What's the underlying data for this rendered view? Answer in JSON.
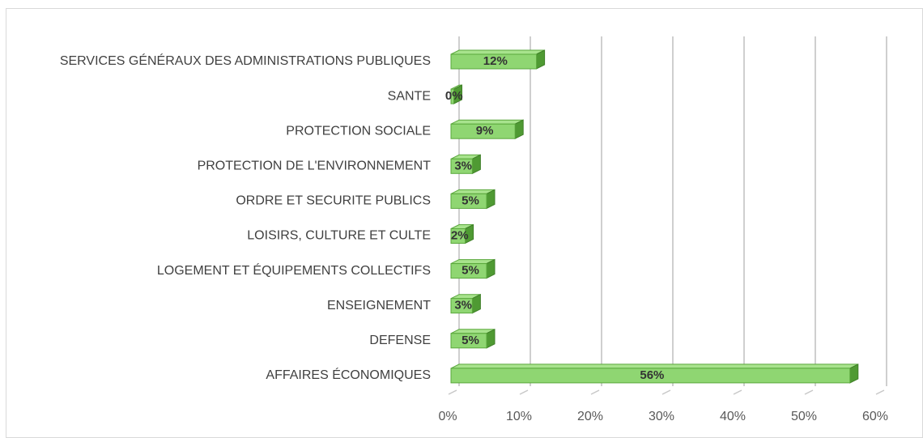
{
  "chart_data": {
    "type": "bar",
    "orientation": "horizontal",
    "categories": [
      "SERVICES GÉNÉRAUX DES ADMINISTRATIONS PUBLIQUES",
      "SANTE",
      "PROTECTION SOCIALE",
      "PROTECTION DE L'ENVIRONNEMENT",
      "ORDRE ET SECURITE PUBLICS",
      "LOISIRS, CULTURE ET CULTE",
      "LOGEMENT ET ÉQUIPEMENTS COLLECTIFS",
      "ENSEIGNEMENT",
      "DEFENSE",
      "AFFAIRES ÉCONOMIQUES"
    ],
    "values": [
      12,
      0.4,
      9,
      3,
      5,
      2,
      5,
      3,
      5,
      56
    ],
    "value_labels": [
      "12%",
      "0%",
      "9%",
      "3%",
      "5%",
      "2%",
      "5%",
      "3%",
      "5%",
      "56%"
    ],
    "color": "#8fd672",
    "xlim": [
      0,
      60
    ],
    "xticks": [
      {
        "value": 0,
        "label": "0%"
      },
      {
        "value": 10,
        "label": "10%"
      },
      {
        "value": 20,
        "label": "20%"
      },
      {
        "value": 30,
        "label": "30%"
      },
      {
        "value": 40,
        "label": "40%"
      },
      {
        "value": 50,
        "label": "50%"
      },
      {
        "value": 60,
        "label": "60%"
      }
    ],
    "grid": true
  }
}
